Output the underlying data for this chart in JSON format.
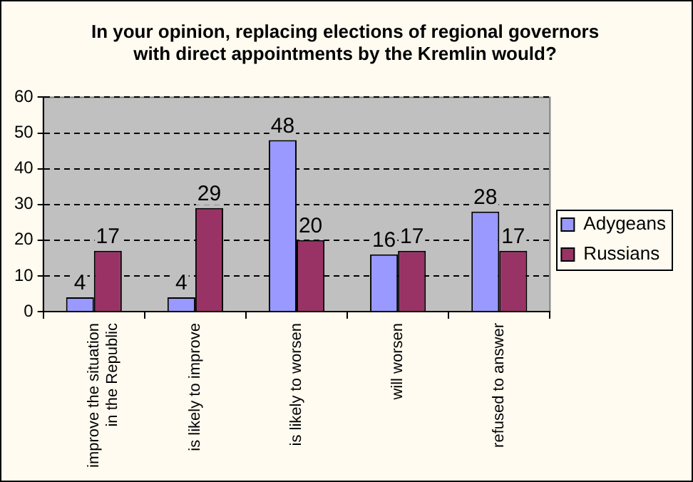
{
  "chart_data": {
    "type": "bar",
    "title": "In your opinion, replacing elections of regional governors with direct appointments by the Kremlin would?",
    "categories": [
      "improve the situation in the Republic",
      "is likely to improve",
      "is likely to worsen",
      "will worsen",
      "refused to answer"
    ],
    "series": [
      {
        "name": "Adygeans",
        "color": "#9999ff",
        "values": [
          4,
          4,
          48,
          16,
          28
        ]
      },
      {
        "name": "Russians",
        "color": "#993366",
        "values": [
          17,
          29,
          20,
          17,
          17
        ]
      }
    ],
    "ylim": [
      0,
      60
    ],
    "yticks": [
      0,
      10,
      20,
      30,
      40,
      50,
      60
    ],
    "grid": "y",
    "legend": "right",
    "data_labels": true
  }
}
